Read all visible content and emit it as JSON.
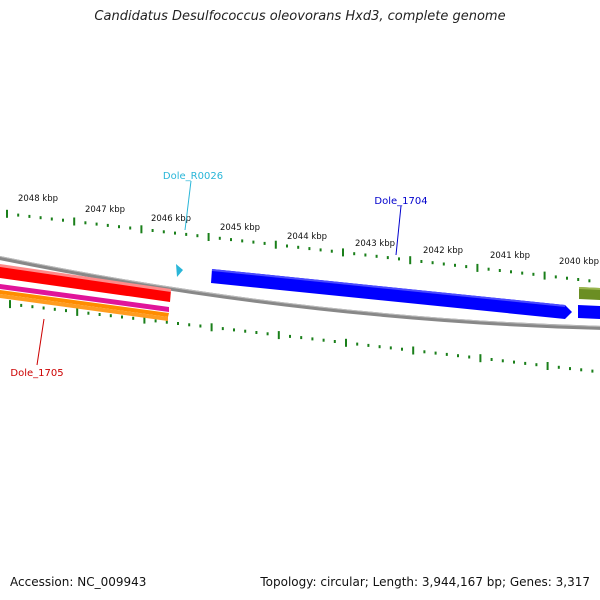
{
  "title": "Candidatus Desulfococcus oleovorans Hxd3, complete genome",
  "footer": {
    "accession": "Accession: NC_009943",
    "summary": "Topology: circular; Length: 3,944,167 bp; Genes: 3,317"
  },
  "ticks": {
    "labels": [
      "2048 kbp",
      "2047 kbp",
      "2046 kbp",
      "2045 kbp",
      "2044 kbp",
      "2043 kbp",
      "2042 kbp",
      "2041 kbp",
      "2040 kbp"
    ],
    "color": "#1a7f1a"
  },
  "features": [
    {
      "label": "Dole_R0026",
      "color": "#29b6d8"
    },
    {
      "label": "Dole_1704",
      "color": "#0000cc"
    },
    {
      "label": "Dole_1705",
      "color": "#cc0000"
    }
  ],
  "colors": {
    "backbone": "#888888",
    "gene_forward": "#0000ff",
    "gene_reverse": "#ff0000",
    "gene_olive": "#6b8e23",
    "band_magenta": "#e0149a",
    "band_orange": "#ff8c00",
    "rna": "#29b6d8"
  }
}
